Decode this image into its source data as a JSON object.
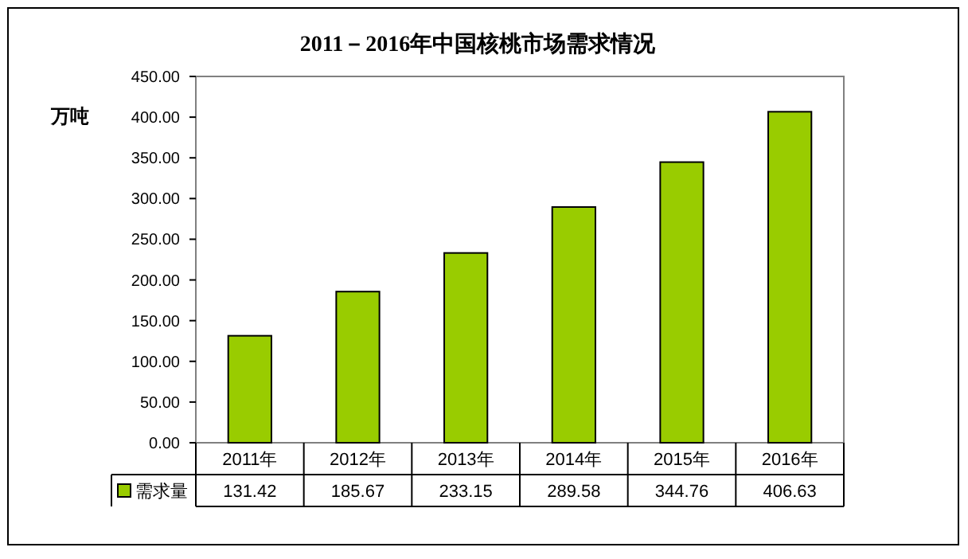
{
  "chart_data": {
    "type": "bar",
    "title": "2011－2016年中国核桃市场需求情况",
    "ylabel": "万吨",
    "categories": [
      "2011年",
      "2012年",
      "2013年",
      "2014年",
      "2015年",
      "2016年"
    ],
    "series": [
      {
        "name": "需求量",
        "color": "#99cc00",
        "values": [
          131.42,
          185.67,
          233.15,
          289.58,
          344.76,
          406.63
        ]
      }
    ],
    "ylim": [
      0,
      450
    ],
    "yticks": [
      {
        "value": 0,
        "label": "0.00"
      },
      {
        "value": 50,
        "label": "50.00"
      },
      {
        "value": 100,
        "label": "100.00"
      },
      {
        "value": 150,
        "label": "150.00"
      },
      {
        "value": 200,
        "label": "200.00"
      },
      {
        "value": 250,
        "label": "250.00"
      },
      {
        "value": 300,
        "label": "300.00"
      },
      {
        "value": 350,
        "label": "350.00"
      },
      {
        "value": 400,
        "label": "400.00"
      },
      {
        "value": 450,
        "label": "450.00"
      }
    ],
    "data_labels": true,
    "legend": "bottom"
  }
}
